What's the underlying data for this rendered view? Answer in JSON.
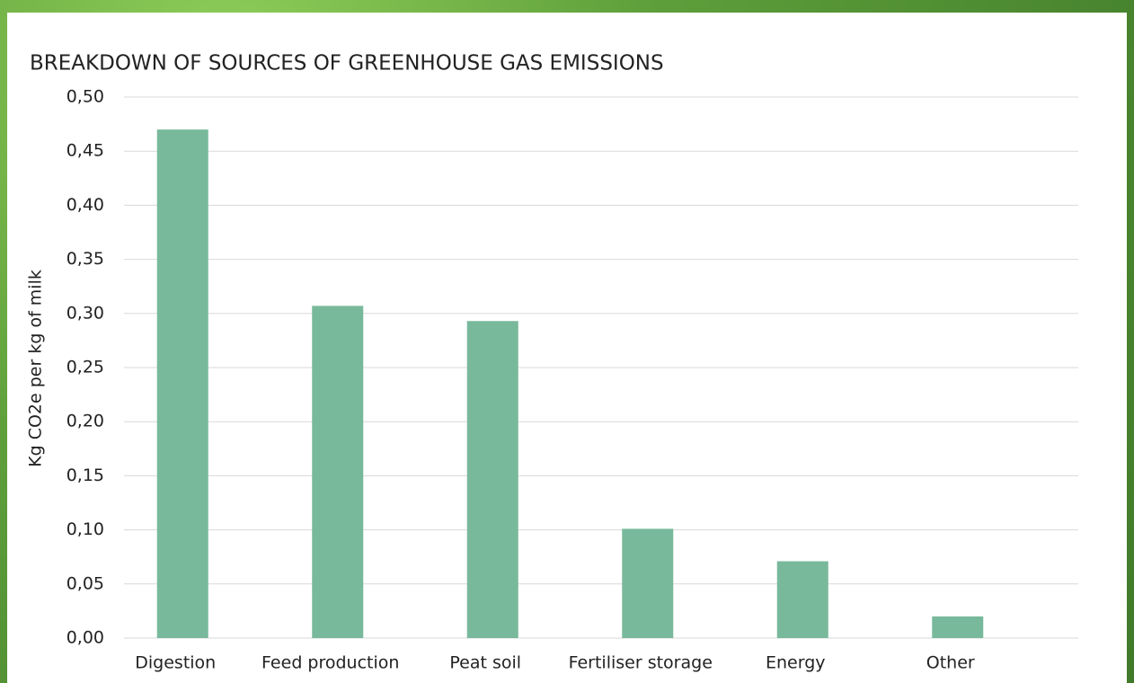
{
  "chart_data": {
    "type": "bar",
    "title": "BREAKDOWN OF SOURCES OF GREENHOUSE GAS EMISSIONS",
    "y_label": "Kg CO2e per kg of milk",
    "categories": [
      "Digestion",
      "Feed production",
      "Peat soil",
      "Fertiliser storage",
      "Energy",
      "Other"
    ],
    "values": [
      0.47,
      0.307,
      0.293,
      0.101,
      0.071,
      0.02
    ],
    "color": "#79b99b",
    "ylim": [
      0,
      0.5
    ],
    "yticks": [
      {
        "value": 0,
        "label": "0,00"
      },
      {
        "value": 0.05,
        "label": "0,05"
      },
      {
        "value": 0.1,
        "label": "0,10"
      },
      {
        "value": 0.15,
        "label": "0,15"
      },
      {
        "value": 0.2,
        "label": "0,20"
      },
      {
        "value": 0.25,
        "label": "0,25"
      },
      {
        "value": 0.3,
        "label": "0,30"
      },
      {
        "value": 0.35,
        "label": "0,35"
      },
      {
        "value": 0.4,
        "label": "0,40"
      },
      {
        "value": 0.45,
        "label": "0,45"
      },
      {
        "value": 0.5,
        "label": "0,50"
      }
    ],
    "grid": true
  }
}
